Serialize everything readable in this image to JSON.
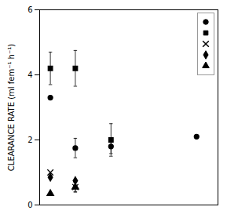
{
  "chart_data": {
    "type": "scatter",
    "ylabel": "CLEARANCE RATE (ml fem⁻¹ h⁻¹)",
    "xlim": [
      0,
      25
    ],
    "xticks": [],
    "ylim": [
      0,
      6
    ],
    "yticks": [
      0,
      2,
      4,
      6
    ],
    "tick_labels": "y",
    "color": "black",
    "legend": "upper right",
    "series": [
      {
        "marker": "circle",
        "x": [
          1.5,
          5,
          10
        ],
        "values": [
          3.3,
          1.75,
          1.8
        ],
        "yerr": [
          0.0,
          0.3,
          0.22
        ]
      },
      {
        "marker": "square",
        "x": [
          1.5,
          5,
          10
        ],
        "values": [
          4.2,
          4.2,
          2.0
        ],
        "yerr": [
          0.5,
          0.55,
          0.5
        ]
      },
      {
        "marker": "cross",
        "x": [
          1.5,
          5
        ],
        "values": [
          1.0,
          0.55
        ],
        "yerr": [
          0.0,
          0.15
        ]
      },
      {
        "marker": "diamond",
        "x": [
          1.5,
          5
        ],
        "values": [
          0.85,
          0.75
        ],
        "yerr": [
          0.0,
          0.0
        ]
      },
      {
        "marker": "triangle",
        "x": [
          1.5,
          5
        ],
        "values": [
          0.35,
          0.55
        ],
        "yerr": [
          0.0,
          0.15
        ]
      },
      {
        "marker": "circle",
        "x": [
          22
        ],
        "values": [
          2.1
        ],
        "yerr": [
          0.0
        ]
      }
    ]
  }
}
